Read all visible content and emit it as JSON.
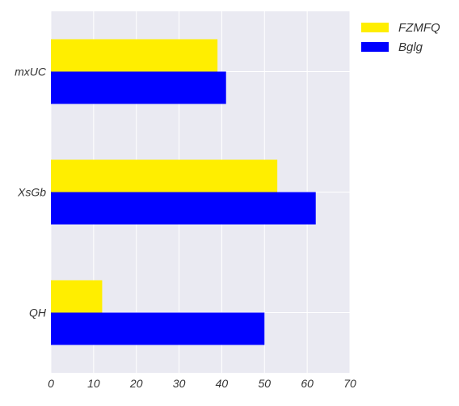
{
  "chart_data": {
    "type": "bar",
    "orientation": "horizontal",
    "categories": [
      "mxUC",
      "XsGb",
      "QH"
    ],
    "series": [
      {
        "name": "FZMFQ",
        "color": "#ffee00",
        "values": [
          39,
          53,
          12
        ]
      },
      {
        "name": "Bglg",
        "color": "#0000ff",
        "values": [
          41,
          62,
          50
        ]
      }
    ],
    "xlim": [
      0,
      70
    ],
    "xticks": [
      0,
      10,
      20,
      30,
      40,
      50,
      60,
      70
    ],
    "grid": true,
    "legend_position": "top-right-outside",
    "colors": {
      "plot_background": "#eaeaf2",
      "grid": "#ffffff"
    }
  }
}
